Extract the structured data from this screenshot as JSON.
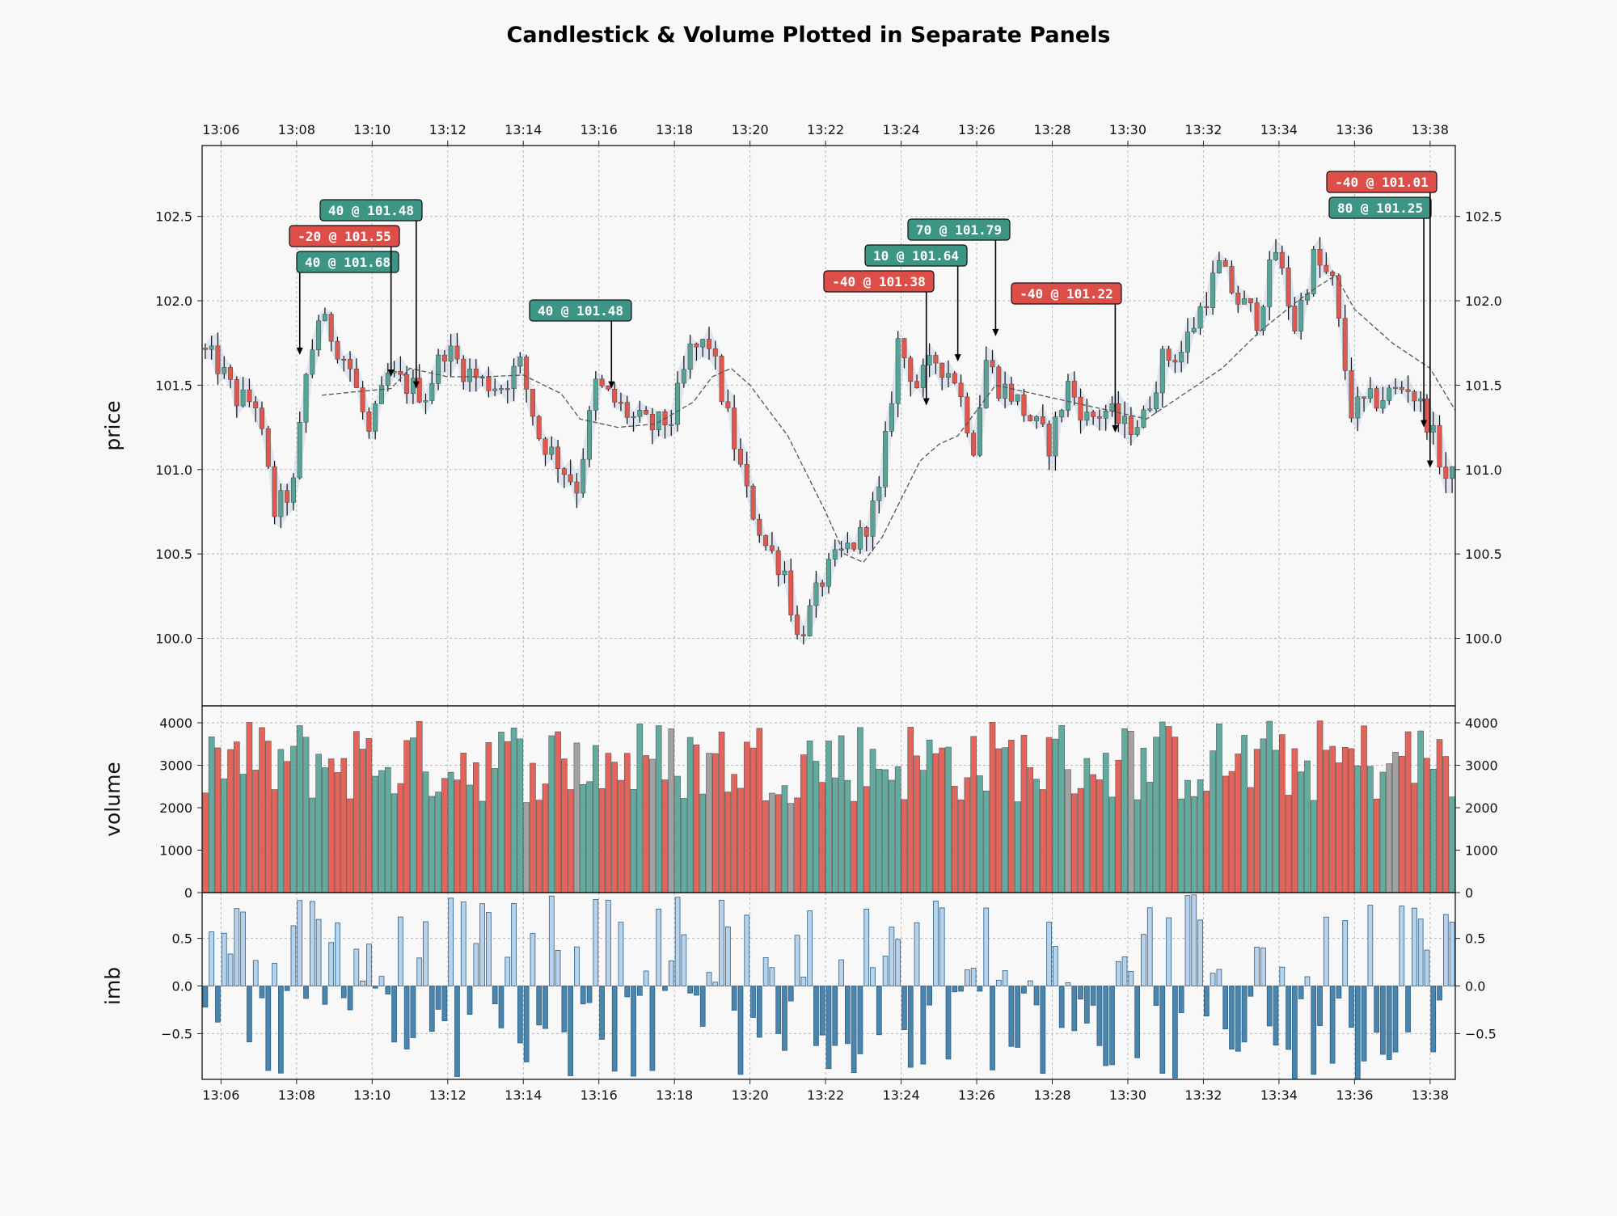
{
  "title": "Candlestick & Volume Plotted in Separate Panels",
  "colors": {
    "up": "#56a496",
    "down": "#e0574d",
    "up_body": "#56a496",
    "down_body": "#e0574d",
    "neutral": "#9a9a9a",
    "ma_line": "#555555",
    "band": "#c8d6e8",
    "imb_pos": "#b7d2ea",
    "imb_neg": "#4a85ad",
    "buy_label": "#3d9586",
    "sell_label": "#de4e48"
  },
  "chart_data": {
    "type": "candlestick",
    "x_start": "13:05:30",
    "bar_interval_seconds": 10,
    "x_ticks": [
      "13:06",
      "13:08",
      "13:10",
      "13:12",
      "13:14",
      "13:16",
      "13:18",
      "13:20",
      "13:22",
      "13:24",
      "13:26",
      "13:28",
      "13:30",
      "13:32",
      "13:34",
      "13:36",
      "13:38"
    ],
    "x_range": [
      "13:05:30",
      "13:38:40"
    ],
    "panels": [
      {
        "name": "price",
        "ylabel": "price",
        "ylim": [
          99.6,
          102.92
        ],
        "yticks": [
          100.0,
          100.5,
          101.0,
          101.5,
          102.0,
          102.5
        ],
        "ytick_labels": [
          "100.0",
          "100.5",
          "101.0",
          "101.5",
          "102.0",
          "102.5"
        ]
      },
      {
        "name": "volume",
        "ylabel": "volume",
        "ylim": [
          0,
          4400
        ],
        "yticks": [
          0,
          1000,
          2000,
          3000,
          4000
        ],
        "ytick_labels": [
          "0",
          "1000",
          "2000",
          "3000",
          "4000"
        ]
      },
      {
        "name": "imb",
        "ylabel": "imb",
        "ylim": [
          -0.98,
          0.98
        ],
        "yticks": [
          -0.5,
          0.0,
          0.5
        ],
        "ytick_labels": [
          "−0.5",
          "0.0",
          "0.5"
        ]
      }
    ],
    "price_anchors": [
      [
        "13:05:30",
        101.72
      ],
      [
        "13:06:00",
        101.62
      ],
      [
        "13:06:30",
        101.42
      ],
      [
        "13:07:00",
        101.4
      ],
      [
        "13:07:30",
        100.75
      ],
      [
        "13:08:00",
        100.9
      ],
      [
        "13:08:20",
        101.55
      ],
      [
        "13:08:40",
        101.9
      ],
      [
        "13:09:00",
        101.8
      ],
      [
        "13:09:30",
        101.6
      ],
      [
        "13:10:00",
        101.2
      ],
      [
        "13:10:30",
        101.55
      ],
      [
        "13:11:00",
        101.5
      ],
      [
        "13:11:30",
        101.45
      ],
      [
        "13:12:00",
        101.72
      ],
      [
        "13:12:30",
        101.6
      ],
      [
        "13:13:00",
        101.52
      ],
      [
        "13:13:30",
        101.5
      ],
      [
        "13:14:00",
        101.62
      ],
      [
        "13:14:30",
        101.2
      ],
      [
        "13:15:00",
        101.05
      ],
      [
        "13:15:30",
        100.9
      ],
      [
        "13:16:00",
        101.5
      ],
      [
        "13:16:30",
        101.4
      ],
      [
        "13:17:00",
        101.3
      ],
      [
        "13:17:30",
        101.25
      ],
      [
        "13:18:00",
        101.3
      ],
      [
        "13:18:30",
        101.7
      ],
      [
        "13:19:00",
        101.75
      ],
      [
        "13:19:30",
        101.3
      ],
      [
        "13:20:00",
        100.85
      ],
      [
        "13:20:30",
        100.55
      ],
      [
        "13:21:00",
        100.4
      ],
      [
        "13:21:20",
        100.0
      ],
      [
        "13:21:40",
        100.15
      ],
      [
        "13:22:00",
        100.35
      ],
      [
        "13:22:30",
        100.5
      ],
      [
        "13:23:00",
        100.6
      ],
      [
        "13:23:30",
        100.85
      ],
      [
        "13:24:00",
        101.75
      ],
      [
        "13:24:30",
        101.5
      ],
      [
        "13:25:00",
        101.65
      ],
      [
        "13:25:30",
        101.55
      ],
      [
        "13:26:00",
        101.15
      ],
      [
        "13:26:20",
        101.65
      ],
      [
        "13:26:40",
        101.5
      ],
      [
        "13:27:00",
        101.45
      ],
      [
        "13:27:30",
        101.3
      ],
      [
        "13:28:00",
        101.15
      ],
      [
        "13:28:30",
        101.5
      ],
      [
        "13:29:00",
        101.3
      ],
      [
        "13:29:30",
        101.35
      ],
      [
        "13:30:00",
        101.25
      ],
      [
        "13:30:30",
        101.3
      ],
      [
        "13:31:00",
        101.65
      ],
      [
        "13:31:30",
        101.7
      ],
      [
        "13:32:00",
        101.95
      ],
      [
        "13:32:30",
        102.2
      ],
      [
        "13:33:00",
        102.0
      ],
      [
        "13:33:30",
        101.9
      ],
      [
        "13:34:00",
        102.3
      ],
      [
        "13:34:30",
        101.85
      ],
      [
        "13:35:00",
        102.25
      ],
      [
        "13:35:30",
        102.1
      ],
      [
        "13:36:00",
        101.35
      ],
      [
        "13:36:30",
        101.4
      ],
      [
        "13:37:00",
        101.45
      ],
      [
        "13:37:30",
        101.5
      ],
      [
        "13:38:00",
        101.3
      ],
      [
        "13:38:30",
        100.95
      ]
    ],
    "moving_average": [
      [
        "13:08:40",
        101.44
      ],
      [
        "13:09:30",
        101.46
      ],
      [
        "13:10:30",
        101.48
      ],
      [
        "13:11:00",
        101.6
      ],
      [
        "13:12:00",
        101.55
      ],
      [
        "13:13:00",
        101.55
      ],
      [
        "13:14:00",
        101.56
      ],
      [
        "13:15:00",
        101.45
      ],
      [
        "13:15:30",
        101.3
      ],
      [
        "13:16:30",
        101.25
      ],
      [
        "13:17:30",
        101.27
      ],
      [
        "13:18:30",
        101.4
      ],
      [
        "13:19:00",
        101.55
      ],
      [
        "13:19:30",
        101.6
      ],
      [
        "13:20:00",
        101.5
      ],
      [
        "13:21:00",
        101.2
      ],
      [
        "13:22:00",
        100.75
      ],
      [
        "13:22:30",
        100.5
      ],
      [
        "13:23:00",
        100.45
      ],
      [
        "13:23:30",
        100.6
      ],
      [
        "13:24:30",
        101.05
      ],
      [
        "13:25:00",
        101.15
      ],
      [
        "13:25:30",
        101.2
      ],
      [
        "13:26:30",
        101.5
      ],
      [
        "13:27:30",
        101.45
      ],
      [
        "13:28:30",
        101.4
      ],
      [
        "13:29:30",
        101.35
      ],
      [
        "13:30:30",
        101.3
      ],
      [
        "13:31:30",
        101.45
      ],
      [
        "13:32:30",
        101.6
      ],
      [
        "13:33:30",
        101.82
      ],
      [
        "13:34:30",
        102.0
      ],
      [
        "13:35:00",
        102.08
      ],
      [
        "13:35:30",
        102.15
      ],
      [
        "13:36:00",
        101.95
      ],
      [
        "13:37:00",
        101.75
      ],
      [
        "13:38:00",
        101.6
      ],
      [
        "13:38:40",
        101.35
      ]
    ],
    "annotations": [
      {
        "label": "40 @ 101.68",
        "side": "buy",
        "time": "13:08:05",
        "price": 101.68
      },
      {
        "label": "-20 @ 101.55",
        "side": "sell",
        "time": "13:10:30",
        "price": 101.55
      },
      {
        "label": "40 @ 101.48",
        "side": "buy",
        "time": "13:11:10",
        "price": 101.48
      },
      {
        "label": "40 @ 101.48",
        "side": "buy",
        "time": "13:16:20",
        "price": 101.48
      },
      {
        "label": "-40 @ 101.38",
        "side": "sell",
        "time": "13:24:40",
        "price": 101.38
      },
      {
        "label": "10 @ 101.64",
        "side": "buy",
        "time": "13:25:30",
        "price": 101.64
      },
      {
        "label": "70 @ 101.79",
        "side": "buy",
        "time": "13:26:30",
        "price": 101.79
      },
      {
        "label": "-40 @ 101.22",
        "side": "sell",
        "time": "13:29:40",
        "price": 101.22
      },
      {
        "label": "80 @ 101.25",
        "side": "buy",
        "time": "13:37:50",
        "price": 101.25
      },
      {
        "label": "-40 @ 101.01",
        "side": "sell",
        "time": "13:38:00",
        "price": 101.01
      }
    ]
  }
}
